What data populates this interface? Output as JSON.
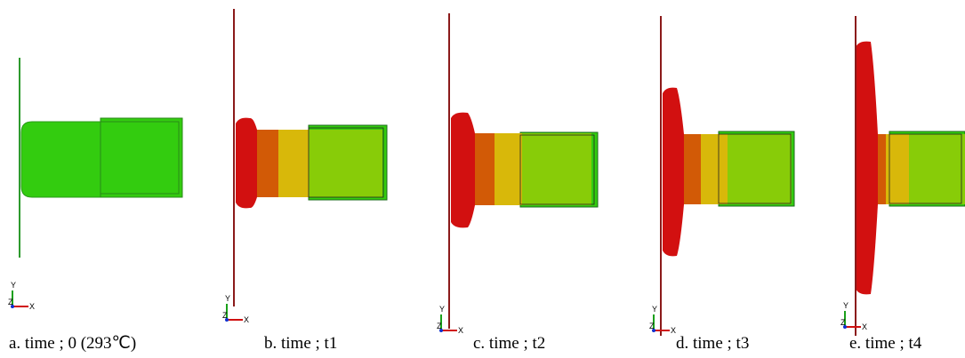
{
  "panels": [
    {
      "caption": "a. time ; 0 (293℃)"
    },
    {
      "caption": "b. time ; t1"
    },
    {
      "caption": "c. time ; t2"
    },
    {
      "caption": "d. time ; t3"
    },
    {
      "caption": "e. time ; t4"
    }
  ],
  "axis_labels": {
    "x": "X",
    "y": "Y",
    "z": "Z"
  }
}
